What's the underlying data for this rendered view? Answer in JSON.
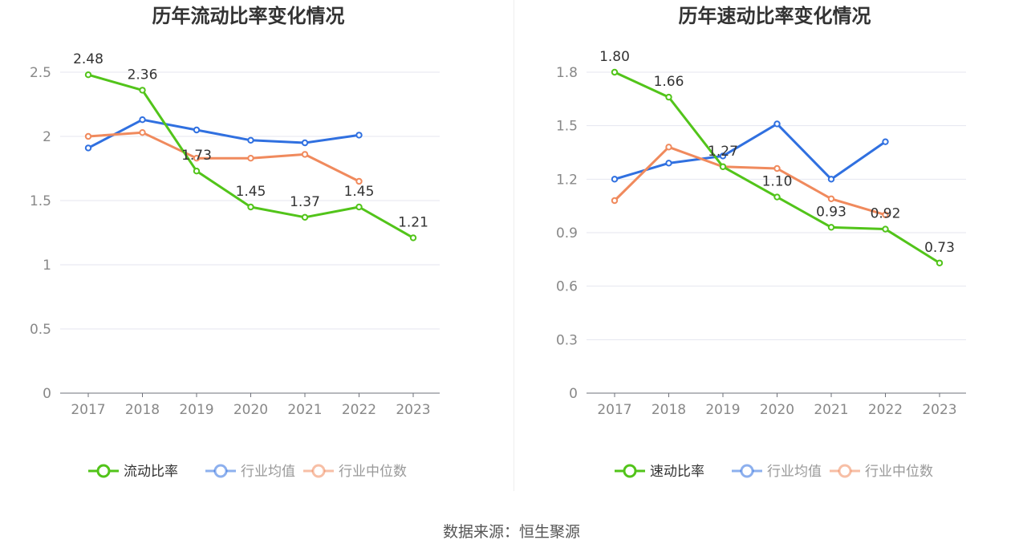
{
  "colors": {
    "primary": "#52c41a",
    "average": "#3070e0",
    "median": "#f08a5d",
    "grid": "#e4e6ef",
    "axis": "#6e7079"
  },
  "source": "数据来源：恒生聚源",
  "chart_data": [
    {
      "type": "line",
      "title": "历年流动比率变化情况",
      "categories": [
        "2017",
        "2018",
        "2019",
        "2020",
        "2021",
        "2022",
        "2023"
      ],
      "ylim": [
        0,
        2.5
      ],
      "yticks": [
        "0",
        "0.5",
        "1",
        "1.5",
        "2",
        "2.5"
      ],
      "ytick_values": [
        0,
        0.5,
        1,
        1.5,
        2,
        2.5
      ],
      "legend_position": "bottom",
      "series": [
        {
          "name": "流动比率",
          "color": "#52c41a",
          "values": [
            2.48,
            2.36,
            1.73,
            1.45,
            1.37,
            1.45,
            1.21
          ],
          "labels": [
            "2.48",
            "2.36",
            "1.73",
            "1.45",
            "1.37",
            "1.45",
            "1.21"
          ]
        },
        {
          "name": "行业均值",
          "color": "#3070e0",
          "values": [
            1.91,
            2.13,
            2.05,
            1.97,
            1.95,
            2.01,
            null
          ]
        },
        {
          "name": "行业中位数",
          "color": "#f08a5d",
          "values": [
            2.0,
            2.03,
            1.83,
            1.83,
            1.86,
            1.65,
            null
          ]
        }
      ]
    },
    {
      "type": "line",
      "title": "历年速动比率变化情况",
      "categories": [
        "2017",
        "2018",
        "2019",
        "2020",
        "2021",
        "2022",
        "2023"
      ],
      "ylim": [
        0,
        1.8
      ],
      "yticks": [
        "0",
        "0.3",
        "0.6",
        "0.9",
        "1.2",
        "1.5",
        "1.8"
      ],
      "ytick_values": [
        0,
        0.3,
        0.6,
        0.9,
        1.2,
        1.5,
        1.8
      ],
      "legend_position": "bottom",
      "series": [
        {
          "name": "速动比率",
          "color": "#52c41a",
          "values": [
            1.8,
            1.66,
            1.27,
            1.1,
            0.93,
            0.92,
            0.73
          ],
          "labels": [
            "1.80",
            "1.66",
            "1.27",
            "1.10",
            "0.93",
            "0.92",
            "0.73"
          ]
        },
        {
          "name": "行业均值",
          "color": "#3070e0",
          "values": [
            1.2,
            1.29,
            1.33,
            1.51,
            1.2,
            1.41,
            null
          ]
        },
        {
          "name": "行业中位数",
          "color": "#f08a5d",
          "values": [
            1.08,
            1.38,
            1.27,
            1.26,
            1.09,
            1.0,
            null
          ]
        }
      ]
    }
  ]
}
